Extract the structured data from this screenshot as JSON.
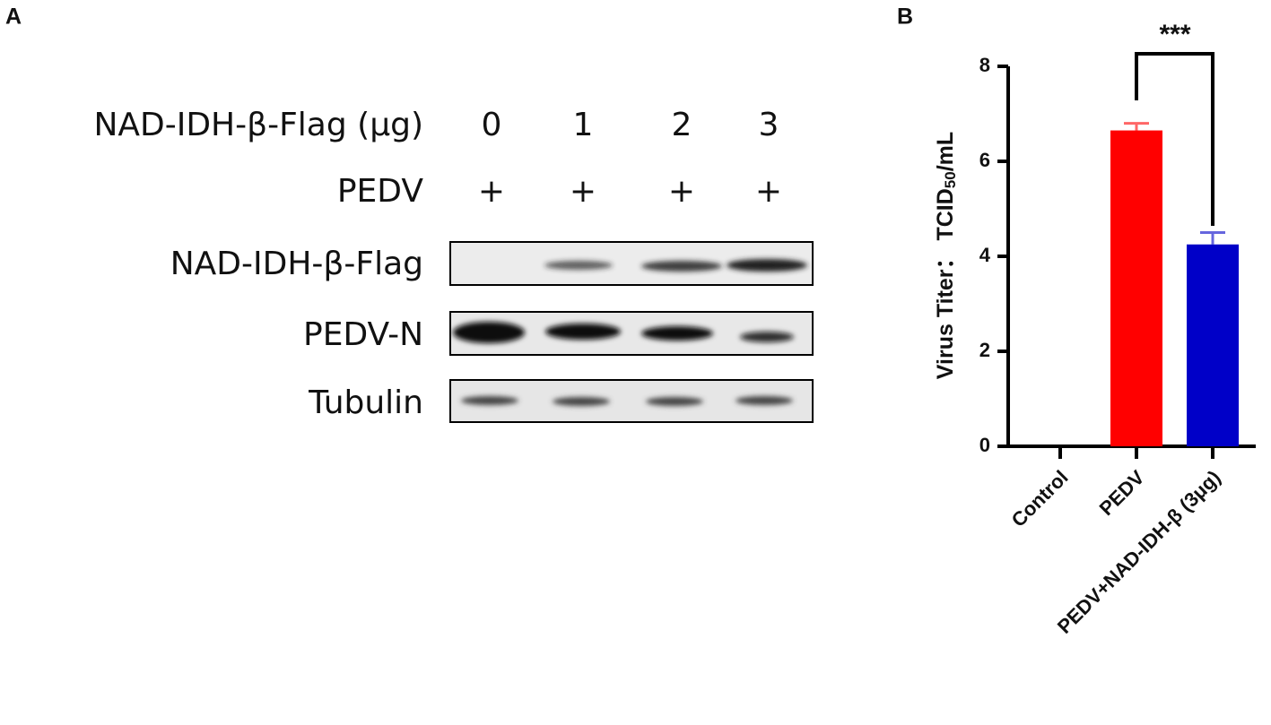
{
  "panels": {
    "a": "A",
    "b": "B"
  },
  "blot": {
    "dose_label": "NAD-IDH-β-Flag (μg)",
    "doses": [
      0,
      1,
      2,
      3
    ],
    "virus_label": "PEDV",
    "virus": [
      "+",
      "+",
      "+",
      "+"
    ],
    "bands": [
      "NAD-IDH-β-Flag",
      "PEDV-N",
      "Tubulin"
    ]
  },
  "chart_data": {
    "type": "bar",
    "categories": [
      "Control",
      "PEDV",
      "PEDV+NAD-IDH-β (3μg)"
    ],
    "values": [
      0,
      6.65,
      4.25
    ],
    "errors": [
      0,
      0.15,
      0.25
    ],
    "colors": [
      null,
      "#ff0000",
      "#0000c8"
    ],
    "y_label": [
      "Virus Titer：  TCID",
      "50",
      "/mL"
    ],
    "ylim": [
      0,
      8
    ],
    "yticks": [
      0,
      2,
      4,
      6,
      8
    ],
    "annotations": [
      {
        "text": "***"
      }
    ]
  }
}
